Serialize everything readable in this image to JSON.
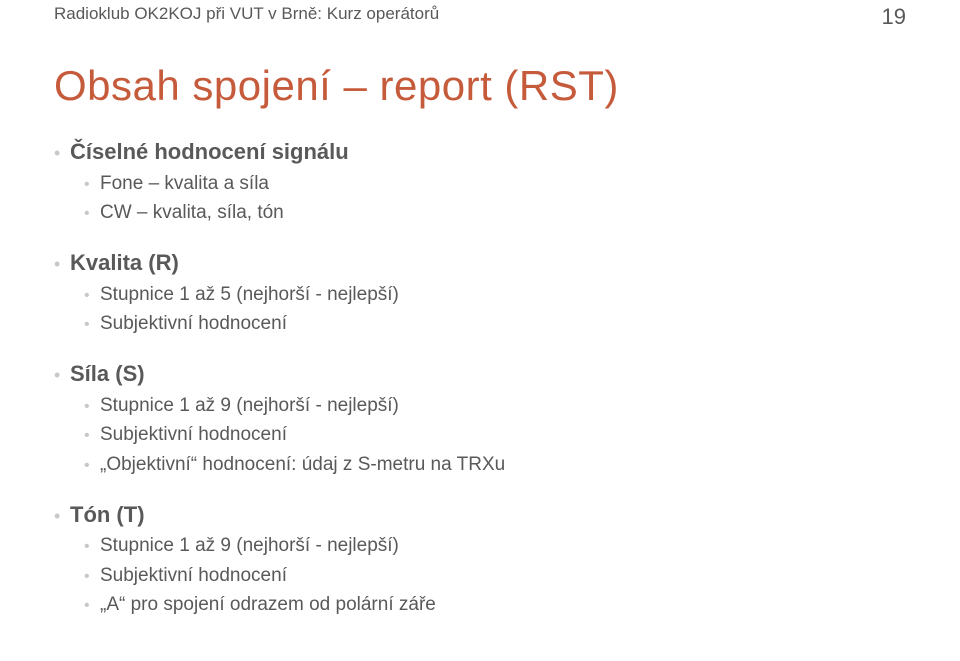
{
  "header": {
    "left": "Radioklub OK2KOJ při VUT v Brně: Kurz operátorů",
    "page": "19"
  },
  "title": "Obsah spojení – report (RST)",
  "colors": {
    "title": "#c65b3c",
    "body_text": "#595959",
    "bullet": "#c8c8c8",
    "background": "#ffffff"
  },
  "sections": [
    {
      "heading": "Číselné hodnocení signálu",
      "items": [
        "Fone – kvalita a síla",
        "CW – kvalita, síla, tón"
      ]
    },
    {
      "heading": "Kvalita (R)",
      "items": [
        "Stupnice 1 až 5 (nejhorší - nejlepší)",
        "Subjektivní hodnocení"
      ]
    },
    {
      "heading": "Síla (S)",
      "items": [
        "Stupnice 1 až 9 (nejhorší - nejlepší)",
        "Subjektivní hodnocení",
        "„Objektivní“ hodnocení: údaj z S-metru na TRXu"
      ]
    },
    {
      "heading": "Tón (T)",
      "items": [
        "Stupnice 1 až 9 (nejhorší - nejlepší)",
        "Subjektivní hodnocení",
        "„A“ pro spojení odrazem od polární záře"
      ]
    }
  ]
}
